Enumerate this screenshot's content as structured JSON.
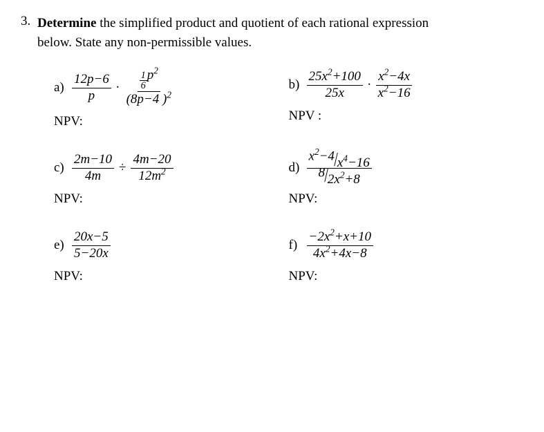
{
  "question": {
    "number": "3.",
    "verb": "Determine",
    "rest1": " the simplified product and quotient of each rational expression",
    "rest2": "below. State any non-permissible values."
  },
  "npv_label": "NPV",
  "labels": {
    "a": "a)",
    "b": "b)",
    "c": "c)",
    "d": "d)",
    "e": "e)",
    "f": "f)"
  },
  "a": {
    "f1_num": "12p−6",
    "f1_den": "p",
    "dot": "∙",
    "f2_num_sn": "1",
    "f2_num_sd": "6",
    "f2_num_tail": "p",
    "f2_num_sup": "2",
    "f2_den": "(8p−4 )",
    "f2_den_sup": "2"
  },
  "b": {
    "f1_num_a": "25x",
    "f1_num_sup": "2",
    "f1_num_b": "+100",
    "f1_den": "25x",
    "dot": "∙",
    "f2_num_a": "x",
    "f2_num_sup1": "2",
    "f2_num_b": "−4x",
    "f2_den_a": "x",
    "f2_den_sup": "2",
    "f2_den_b": "−16"
  },
  "c": {
    "f1_num": "2m−10",
    "f1_den": "4m",
    "div": "÷",
    "f2_num": "4m−20",
    "f2_den_a": "12m",
    "f2_den_sup": "2"
  },
  "d": {
    "top_dn_a": "x",
    "top_dn_sup": "2",
    "top_dn_b": "−4",
    "top_dd_a": "x",
    "top_dd_sup": "4",
    "top_dd_b": "−16",
    "bot_dn": "8",
    "bot_dd_a": "2x",
    "bot_dd_sup": "2",
    "bot_dd_b": "+8"
  },
  "e": {
    "num": "20x−5",
    "den": "5−20x"
  },
  "f": {
    "num_a": "−2x",
    "num_sup": "2",
    "num_b": "+x+10",
    "den_a": "4x",
    "den_sup1": "2",
    "den_b": "+4x−8"
  }
}
